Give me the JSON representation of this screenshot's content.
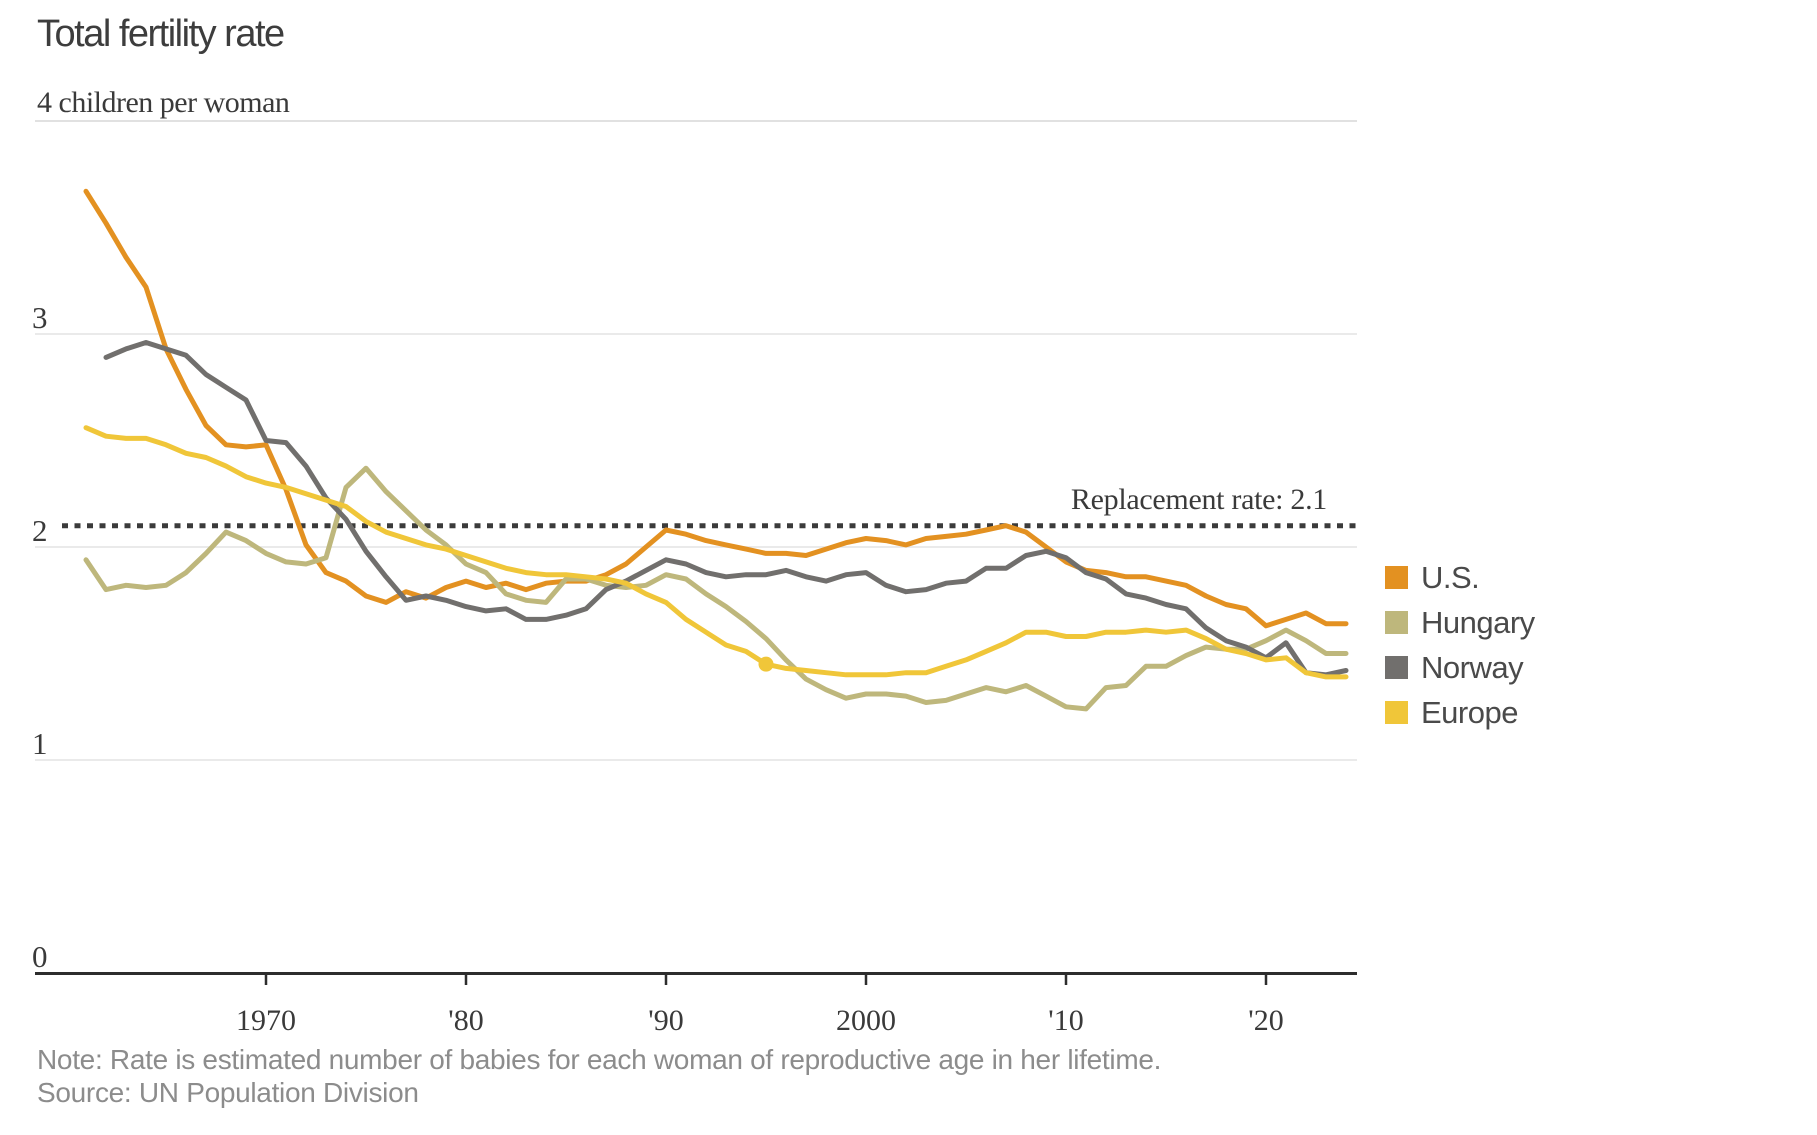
{
  "title": "Total fertility rate",
  "note": "Note: Rate is estimated number of babies for each woman of reproductive age in her lifetime.",
  "source": "Source: UN Population Division",
  "colors": {
    "us": "#E39121",
    "hungary": "#BEB77C",
    "norway": "#716F6D",
    "europe": "#F0C639",
    "replacement_line": "#3b3b3b",
    "axis": "#2d2d2d",
    "gridline": "#e4e4e4",
    "gridline_top": "#d7d7d7"
  },
  "chart_data": {
    "type": "line",
    "title": "Total fertility rate",
    "unit_label": "4 children per woman",
    "ylabel": "children per woman",
    "xlabel": "",
    "ylim": [
      0,
      4
    ],
    "xlim": [
      1960,
      2025
    ],
    "grid": "horizontal",
    "legend_position": "right",
    "y_ticks": [
      {
        "value": 3,
        "label": "3"
      },
      {
        "value": 2,
        "label": "2"
      },
      {
        "value": 1,
        "label": "1"
      },
      {
        "value": 0,
        "label": "0"
      }
    ],
    "x_ticks": [
      {
        "year": 1970,
        "label": "1970"
      },
      {
        "year": 1980,
        "label": "'80"
      },
      {
        "year": 1990,
        "label": "'90"
      },
      {
        "year": 2000,
        "label": "2000"
      },
      {
        "year": 2010,
        "label": "'10"
      },
      {
        "year": 2020,
        "label": "'20"
      }
    ],
    "annotation": {
      "label": "Replacement rate: 2.1",
      "value": 2.1,
      "style": "dotted"
    },
    "marker": {
      "series": "Europe",
      "year": 1995,
      "value": 1.45
    },
    "series": [
      {
        "name": "U.S.",
        "color": "#E39121",
        "start_year": 1961,
        "values": [
          3.67,
          3.52,
          3.36,
          3.22,
          2.93,
          2.74,
          2.57,
          2.48,
          2.47,
          2.48,
          2.27,
          2.01,
          1.88,
          1.84,
          1.77,
          1.74,
          1.79,
          1.76,
          1.81,
          1.84,
          1.81,
          1.83,
          1.8,
          1.83,
          1.84,
          1.84,
          1.87,
          1.92,
          2.0,
          2.08,
          2.06,
          2.03,
          2.01,
          1.99,
          1.97,
          1.97,
          1.96,
          1.99,
          2.02,
          2.04,
          2.03,
          2.01,
          2.04,
          2.05,
          2.06,
          2.08,
          2.1,
          2.07,
          2.0,
          1.93,
          1.89,
          1.88,
          1.86,
          1.86,
          1.84,
          1.82,
          1.77,
          1.73,
          1.71,
          1.63,
          1.66,
          1.69,
          1.64,
          1.64
        ]
      },
      {
        "name": "Hungary",
        "color": "#BEB77C",
        "start_year": 1961,
        "values": [
          1.94,
          1.8,
          1.82,
          1.81,
          1.82,
          1.88,
          1.97,
          2.07,
          2.03,
          1.97,
          1.93,
          1.92,
          1.95,
          2.28,
          2.37,
          2.26,
          2.17,
          2.08,
          2.01,
          1.92,
          1.88,
          1.78,
          1.75,
          1.74,
          1.85,
          1.85,
          1.82,
          1.81,
          1.82,
          1.87,
          1.85,
          1.78,
          1.72,
          1.65,
          1.57,
          1.47,
          1.38,
          1.33,
          1.29,
          1.31,
          1.31,
          1.3,
          1.27,
          1.28,
          1.31,
          1.34,
          1.32,
          1.35,
          1.3,
          1.25,
          1.24,
          1.34,
          1.35,
          1.44,
          1.44,
          1.49,
          1.53,
          1.52,
          1.52,
          1.56,
          1.61,
          1.56,
          1.5,
          1.5
        ]
      },
      {
        "name": "Norway",
        "color": "#716F6D",
        "start_year": 1962,
        "values": [
          2.89,
          2.93,
          2.96,
          2.93,
          2.9,
          2.81,
          2.75,
          2.69,
          2.5,
          2.49,
          2.38,
          2.23,
          2.13,
          1.98,
          1.86,
          1.75,
          1.77,
          1.75,
          1.72,
          1.7,
          1.71,
          1.66,
          1.66,
          1.68,
          1.71,
          1.8,
          1.84,
          1.89,
          1.94,
          1.92,
          1.88,
          1.86,
          1.87,
          1.87,
          1.89,
          1.86,
          1.84,
          1.87,
          1.88,
          1.82,
          1.79,
          1.8,
          1.83,
          1.84,
          1.9,
          1.9,
          1.96,
          1.98,
          1.95,
          1.88,
          1.85,
          1.78,
          1.76,
          1.73,
          1.71,
          1.62,
          1.56,
          1.53,
          1.48,
          1.55,
          1.41,
          1.4,
          1.42
        ]
      },
      {
        "name": "Europe",
        "color": "#F0C639",
        "start_year": 1961,
        "values": [
          2.56,
          2.52,
          2.51,
          2.51,
          2.48,
          2.44,
          2.42,
          2.38,
          2.33,
          2.3,
          2.28,
          2.25,
          2.22,
          2.19,
          2.12,
          2.07,
          2.04,
          2.01,
          1.99,
          1.96,
          1.93,
          1.9,
          1.88,
          1.87,
          1.87,
          1.86,
          1.85,
          1.83,
          1.78,
          1.74,
          1.66,
          1.6,
          1.54,
          1.51,
          1.45,
          1.43,
          1.42,
          1.41,
          1.4,
          1.4,
          1.4,
          1.41,
          1.41,
          1.44,
          1.47,
          1.51,
          1.55,
          1.6,
          1.6,
          1.58,
          1.58,
          1.6,
          1.6,
          1.61,
          1.6,
          1.61,
          1.57,
          1.52,
          1.5,
          1.47,
          1.48,
          1.41,
          1.39,
          1.39
        ]
      }
    ]
  }
}
